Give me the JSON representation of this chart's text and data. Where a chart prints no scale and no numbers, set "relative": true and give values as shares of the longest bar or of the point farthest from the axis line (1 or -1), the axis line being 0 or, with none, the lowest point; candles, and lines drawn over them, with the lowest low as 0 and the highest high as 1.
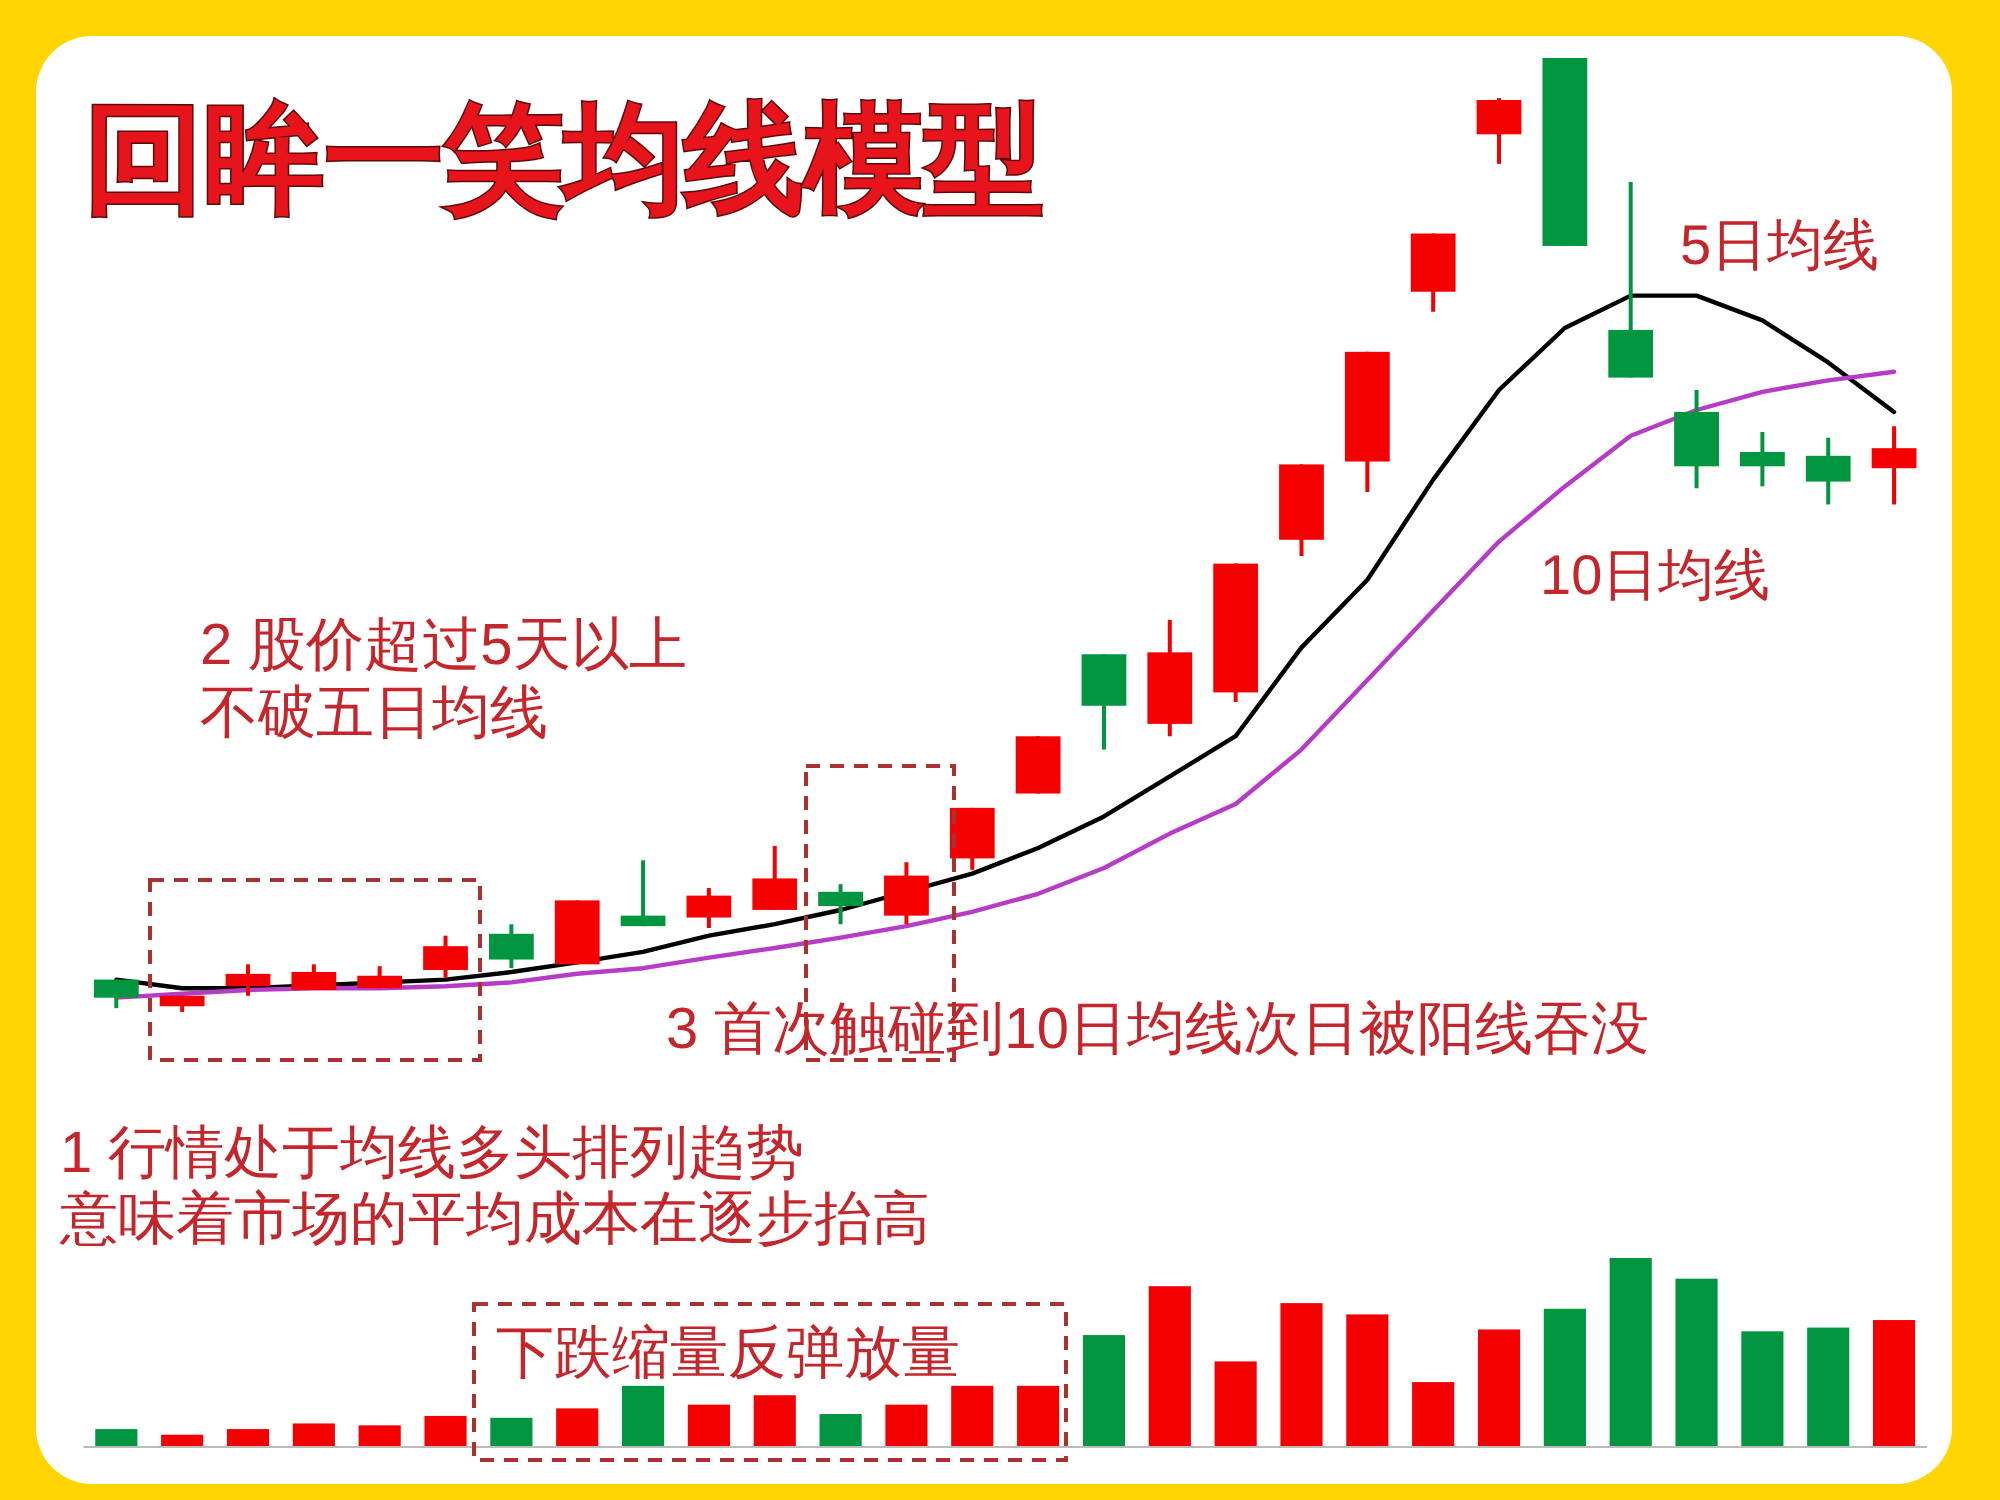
{
  "chart_data": [
    {
      "type": "candlestick",
      "relative": true,
      "title": "回眸一笑均线模型",
      "categories": [
        null,
        null,
        null,
        null,
        null,
        null,
        null,
        null,
        null,
        null,
        null,
        null,
        null,
        null,
        null,
        null,
        null,
        null,
        null,
        null,
        null,
        null,
        null,
        null,
        null,
        null,
        null,
        null
      ],
      "ohlc": [
        [
          0.034,
          0.034,
          0.004,
          0.015
        ],
        [
          0.006,
          0.017,
          0,
          0.017
        ],
        [
          0.027,
          0.05,
          0.017,
          0.04
        ],
        [
          0.023,
          0.05,
          0.023,
          0.042
        ],
        [
          0.025,
          0.048,
          0.025,
          0.038
        ],
        [
          0.044,
          0.08,
          0.036,
          0.069
        ],
        [
          0.082,
          0.092,
          0.046,
          0.055
        ],
        [
          0.05,
          0.117,
          0.05,
          0.117
        ],
        [
          0.101,
          0.159,
          0.09,
          0.09
        ],
        [
          0.099,
          0.13,
          0.088,
          0.122
        ],
        [
          0.107,
          0.174,
          0.107,
          0.14
        ],
        [
          0.126,
          0.134,
          0.092,
          0.111
        ],
        [
          0.101,
          0.157,
          0.092,
          0.143
        ],
        [
          0.161,
          0.214,
          0.149,
          0.214
        ],
        [
          0.229,
          0.289,
          0.229,
          0.289
        ],
        [
          0.375,
          0.375,
          0.275,
          0.321
        ],
        [
          0.302,
          0.411,
          0.289,
          0.377
        ],
        [
          0.335,
          0.47,
          0.325,
          0.47
        ],
        [
          0.495,
          0.574,
          0.478,
          0.574
        ],
        [
          0.577,
          0.692,
          0.545,
          0.692
        ],
        [
          0.755,
          0.816,
          0.734,
          0.816
        ],
        [
          0.92,
          0.958,
          0.889,
          0.956
        ],
        [
          1,
          1,
          0.803,
          0.803
        ],
        [
          0.715,
          0.87,
          0.665,
          0.665
        ],
        [
          0.629,
          0.652,
          0.549,
          0.572
        ],
        [
          0.587,
          0.608,
          0.551,
          0.572
        ],
        [
          0.583,
          0.602,
          0.532,
          0.556
        ],
        [
          0.57,
          0.614,
          0.532,
          0.591
        ]
      ],
      "colors": [
        "#00963f",
        "#f50000",
        "#f50000",
        "#f50000",
        "#f50000",
        "#f50000",
        "#00963f",
        "#f50000",
        "#00963f",
        "#f50000",
        "#f50000",
        "#00963f",
        "#f50000",
        "#f50000",
        "#f50000",
        "#00963f",
        "#f50000",
        "#f50000",
        "#f50000",
        "#f50000",
        "#f50000",
        "#f50000",
        "#00963f",
        "#00963f",
        "#00963f",
        "#00963f",
        "#00963f",
        "#f50000"
      ],
      "series": [
        {
          "type": "line",
          "name": "5日均线",
          "color": "#000000",
          "values": [
            0.034,
            0.025,
            0.025,
            null,
            null,
            0.034,
            0.042,
            0.052,
            0.063,
            0.08,
            0.092,
            0.107,
            null,
            0.145,
            0.172,
            0.205,
            0.247,
            0.289,
            0.382,
            0.453,
            0.558,
            0.652,
            0.717,
            0.751,
            0.751,
            0.725,
            0.681,
            0.629
          ]
        },
        {
          "type": "line",
          "name": "10日均线",
          "color": "#b63cc8",
          "values": [
            0.015,
            0.019,
            0.023,
            0.025,
            0.025,
            0.027,
            0.031,
            0.04,
            0.046,
            0.057,
            0.067,
            0.078,
            0.09,
            0.105,
            0.124,
            0.151,
            0.187,
            0.218,
            0.275,
            0.348,
            0.421,
            0.493,
            0.551,
            0.604,
            0.631,
            0.65,
            0.662,
            0.671
          ]
        }
      ],
      "annotations": [
        "2 股价超过5天以上",
        "不破五日均线",
        "3 首次触碰到10日均线次日被阳线吞没",
        "1 行情处于均线多头排列趋势",
        "意味着市场的平均成本在逐步抬高"
      ]
    },
    {
      "type": "bar",
      "relative": true,
      "categories": [
        null,
        null,
        null,
        null,
        null,
        null,
        null,
        null,
        null,
        null,
        null,
        null,
        null,
        null,
        null,
        null,
        null,
        null,
        null,
        null,
        null,
        null,
        null,
        null,
        null,
        null,
        null,
        null
      ],
      "values": [
        0.09,
        0.06,
        0.09,
        0.12,
        0.11,
        0.16,
        0.15,
        0.2,
        0.32,
        0.22,
        0.27,
        0.17,
        0.22,
        0.32,
        0.32,
        0.59,
        0.85,
        0.45,
        0.76,
        0.7,
        0.34,
        0.62,
        0.73,
        1,
        0.89,
        0.61,
        0.63,
        0.67
      ],
      "colors": [
        "#00963f",
        "#f50000",
        "#f50000",
        "#f50000",
        "#f50000",
        "#f50000",
        "#00963f",
        "#f50000",
        "#00963f",
        "#f50000",
        "#f50000",
        "#00963f",
        "#f50000",
        "#f50000",
        "#f50000",
        "#00963f",
        "#f50000",
        "#f50000",
        "#f50000",
        "#f50000",
        "#f50000",
        "#f50000",
        "#00963f",
        "#00963f",
        "#00963f",
        "#00963f",
        "#00963f",
        "#f50000"
      ],
      "annotations": [
        "下跌缩量反弹放量"
      ]
    }
  ]
}
